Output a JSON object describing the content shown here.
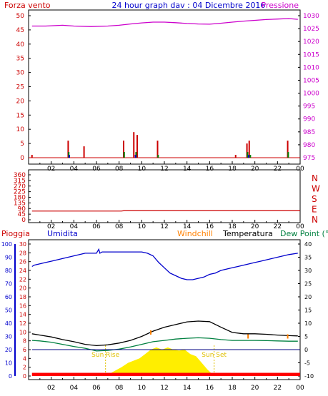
{
  "header": {
    "left_label": "Forza vento",
    "title": "24 hour graph dav : 04 Dicembre 2016",
    "right_label": "Pressione"
  },
  "x_ticks": [
    "02",
    "04",
    "06",
    "08",
    "10",
    "12",
    "14",
    "16",
    "18",
    "20",
    "22",
    "00"
  ],
  "colors": {
    "frame": "#000000",
    "wind": "#cc0000",
    "gust": "#008000",
    "gust2": "#0000cc",
    "pressure": "#cc00cc",
    "humidity": "#0000cc",
    "temperature": "#000000",
    "dewpoint": "#008040",
    "windchill": "#ff8000",
    "rain": "#ff0000",
    "sun": "#ffee00",
    "sun_label": "#e0c000"
  },
  "chart_data": [
    {
      "type": "line",
      "name": "wind-pressure",
      "x_unit": "hours",
      "xlim": [
        0,
        24
      ],
      "left_axis": {
        "label": "Forza vento",
        "ylim": [
          0,
          50
        ],
        "ticks": [
          0,
          5,
          10,
          15,
          20,
          25,
          30,
          35,
          40,
          45,
          50
        ]
      },
      "right_axis": {
        "label": "Pressione",
        "ylim": [
          975,
          1030
        ],
        "ticks": [
          975,
          980,
          985,
          990,
          995,
          1000,
          1005,
          1010,
          1015,
          1020,
          1025,
          1030
        ]
      },
      "series": [
        {
          "name": "Pressione",
          "axis": "right",
          "style": "line",
          "x": [
            0.3,
            1.5,
            3,
            4,
            5.5,
            7,
            8,
            9,
            10,
            11,
            12,
            13,
            14,
            15,
            16,
            16.8,
            18,
            19,
            20,
            21,
            22,
            23,
            23.8
          ],
          "y": [
            1026.0,
            1026.0,
            1026.3,
            1026.0,
            1025.8,
            1026.0,
            1026.3,
            1026.8,
            1027.2,
            1027.5,
            1027.5,
            1027.3,
            1027.0,
            1026.8,
            1026.7,
            1027.0,
            1027.5,
            1027.9,
            1028.2,
            1028.5,
            1028.7,
            1028.9,
            1028.6
          ]
        },
        {
          "name": "Forza vento",
          "axis": "left",
          "style": "spikes",
          "color_key": "wind",
          "x": [
            0.3,
            3.5,
            4.9,
            8.4,
            9.3,
            9.6,
            11.4,
            18.3,
            19.3,
            19.5,
            22.9
          ],
          "y": [
            1,
            6,
            4,
            6,
            9,
            8,
            6,
            1,
            5,
            6,
            6
          ]
        },
        {
          "name": "",
          "axis": "left",
          "style": "spikes",
          "color_key": "gust",
          "x": [
            3.55,
            8.45,
            9.5,
            11.45,
            19.35,
            19.6,
            22.95
          ],
          "y": [
            2,
            2,
            2,
            1,
            2,
            1,
            2
          ]
        },
        {
          "name": "",
          "axis": "left",
          "style": "spikes",
          "color_key": "gust2",
          "x": [
            3.6,
            9.45,
            19.45
          ],
          "y": [
            1,
            1,
            1
          ]
        }
      ]
    },
    {
      "type": "line",
      "name": "wind-direction",
      "x_unit": "hours",
      "xlim": [
        0,
        24
      ],
      "ylim": [
        0,
        360
      ],
      "left_ticks": [
        0,
        45,
        90,
        135,
        180,
        225,
        270,
        315,
        360
      ],
      "right_ticks": [
        "N",
        "E",
        "S",
        "W",
        "N"
      ],
      "series": [
        {
          "name": "",
          "x": [
            0.3,
            8.2,
            8.4,
            24
          ],
          "y": [
            70,
            70,
            72,
            72
          ]
        }
      ]
    },
    {
      "type": "line",
      "name": "temp-humidity-rain",
      "x_unit": "hours",
      "xlim": [
        0,
        24
      ],
      "labels": {
        "pioggia": "Pioggia",
        "umidita": "Umidita",
        "windchill": "Windchill",
        "temperatura": "Temperatura",
        "dewpoint": "Dew Point (°C"
      },
      "humidity_axis": {
        "ylim": [
          0,
          100
        ],
        "ticks": [
          0,
          10,
          20,
          30,
          40,
          50,
          60,
          70,
          80,
          90,
          100
        ]
      },
      "rain_axis": {
        "ylim": [
          0,
          30
        ],
        "ticks": [
          0,
          2,
          4,
          6,
          8,
          10,
          12,
          14,
          16,
          18,
          20,
          22,
          24,
          26,
          28,
          30
        ]
      },
      "temp_axis": {
        "ylim": [
          -10,
          40
        ],
        "ticks": [
          -10,
          -5,
          0,
          5,
          10,
          15,
          20,
          25,
          30,
          35,
          40
        ]
      },
      "sun": {
        "rise_label": "Sun Rise",
        "set_label": "Sun Set",
        "rise_hour": 6.8,
        "set_hour": 16.4
      },
      "series": [
        {
          "name": "Umidita",
          "axis": "humidity",
          "x": [
            0.3,
            0.5,
            1,
            1.5,
            2,
            2.5,
            3,
            3.5,
            4,
            4.5,
            5,
            5.5,
            6,
            6.2,
            6.3,
            6.5,
            7,
            8,
            9,
            10,
            10.5,
            11,
            11.5,
            12,
            12.5,
            13,
            13.5,
            14,
            14.5,
            15,
            15.5,
            16,
            16.5,
            17,
            17.5,
            18,
            18.5,
            19,
            19.5,
            20,
            20.5,
            21,
            21.5,
            22,
            22.5,
            23,
            23.8
          ],
          "y": [
            83,
            84,
            85,
            86,
            87,
            88,
            89,
            90,
            91,
            92,
            93,
            93,
            93,
            96,
            93,
            94,
            94,
            94,
            94,
            94,
            93,
            91,
            86,
            82,
            78,
            76,
            74,
            73,
            73,
            74,
            75,
            77,
            78,
            80,
            81,
            82,
            83,
            84,
            85,
            86,
            87,
            88,
            89,
            90,
            91,
            92,
            93
          ]
        },
        {
          "name": "Temperatura",
          "axis": "temp",
          "x": [
            0.3,
            1,
            2,
            3,
            4,
            5,
            6,
            7,
            8,
            9,
            10,
            11,
            12,
            13,
            14,
            15,
            16,
            17,
            18,
            19,
            20,
            21,
            22,
            23,
            23.8
          ],
          "y": [
            6,
            5.5,
            4.8,
            3.8,
            3,
            2,
            1.5,
            1.8,
            2.5,
            3.5,
            5,
            7,
            8.5,
            9.5,
            10.5,
            10.8,
            10.6,
            8.5,
            6.5,
            6,
            6,
            5.8,
            5.5,
            5.3,
            5.2
          ]
        },
        {
          "name": "Dew Point (°C",
          "axis": "temp",
          "x": [
            0.3,
            1,
            2,
            3,
            4,
            5,
            6,
            7,
            8,
            9,
            10,
            11,
            12,
            13,
            14,
            15,
            16,
            17,
            18,
            19,
            20,
            21,
            22,
            23,
            23.8
          ],
          "y": [
            3.5,
            3.3,
            2.8,
            2,
            1.2,
            0.5,
            -0.5,
            -0.3,
            0.2,
            1,
            2,
            3,
            3.5,
            4,
            4.3,
            4.5,
            4.3,
            3.8,
            3.5,
            3.5,
            3.5,
            3.4,
            3.3,
            3.2,
            3.2
          ]
        },
        {
          "name": "Windchill",
          "axis": "temp",
          "style": "marks",
          "x": [
            10.8,
            19.4,
            22.9
          ],
          "y": [
            6.5,
            5,
            5
          ]
        },
        {
          "name": "",
          "axis": "temp",
          "style": "flat",
          "x": [
            0.3,
            24
          ],
          "y": [
            0,
            0
          ]
        },
        {
          "name": "Pioggia",
          "axis": "rain",
          "style": "area",
          "x": [
            0.3,
            24
          ],
          "y": [
            0.4,
            0.4
          ]
        },
        {
          "name": "",
          "axis": "rain",
          "style": "sun",
          "x": [
            6.8,
            7.5,
            8.2,
            8.8,
            9.3,
            9.8,
            10.3,
            10.8,
            11.3,
            11.8,
            12.3,
            12.8,
            13.3,
            13.8,
            14.3,
            14.8,
            15.3,
            15.8,
            16.4
          ],
          "y": [
            0,
            1,
            2,
            3,
            3.5,
            4,
            5,
            6,
            6.5,
            6,
            6.5,
            6,
            5.8,
            6,
            5,
            4.5,
            3,
            1.5,
            0
          ]
        }
      ]
    }
  ]
}
